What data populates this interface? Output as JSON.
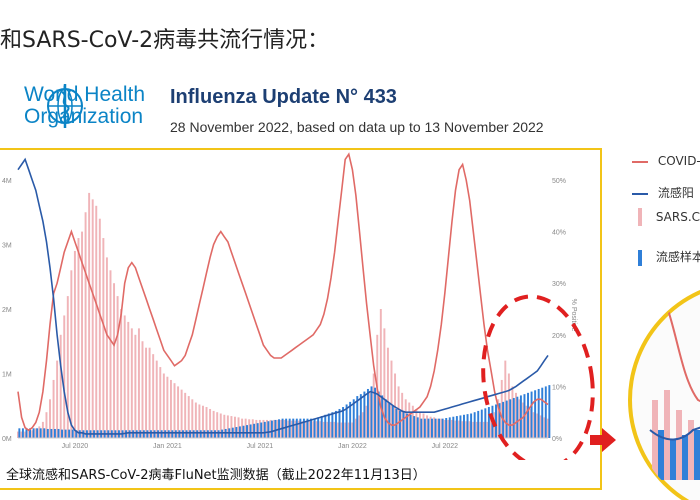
{
  "slide": {
    "title": "和SARS-CoV-2病毒共流行情况："
  },
  "who": {
    "line1": "World Health",
    "line2": "Organization"
  },
  "report": {
    "title": "Influenza Update N° 433",
    "subtitle": "28 November 2022, based on data up to 13 November 2022"
  },
  "caption": "全球流感和SARS-CoV-2病毒FluNet监测数据（截止2022年11月13日）",
  "legend": {
    "items": [
      {
        "label": "COVID-",
        "color": "#e06a66"
      },
      {
        "label": "流感阳",
        "color": "#2a5aa8"
      },
      {
        "label": "SARS.Co",
        "color": "#f0b4b8"
      },
      {
        "label": "流感样本",
        "color": "#2f7fd8"
      }
    ]
  },
  "colors": {
    "covid_line": "#e06a66",
    "flu_line": "#2a5aa8",
    "sars_bar": "#f0b4b8",
    "flu_bar": "#2f7fd8",
    "frame": "#f2c418",
    "highlight": "#e02020"
  },
  "chart_data": {
    "type": "bar",
    "x_tick_labels": [
      "Jul 2020",
      "Jan 2021",
      "Jul 2021",
      "Jan 2022",
      "Jul 2022"
    ],
    "y_left_ticks": [
      "0M",
      "1M",
      "2M",
      "3M",
      "4M"
    ],
    "y_right_ticks": [
      "0%",
      "10%",
      "20%",
      "30%",
      "40%",
      "50%"
    ],
    "y_right_label": "% Positive",
    "ylim_left": [
      0,
      4
    ],
    "ylim_right": [
      0,
      50
    ],
    "weeks": 150,
    "series": [
      {
        "kind": "bar",
        "values_M": [
          0.1,
          0.1,
          0.1,
          0.12,
          0.12,
          0.15,
          0.18,
          0.25,
          0.4,
          0.6,
          0.9,
          1.2,
          1.6,
          1.9,
          2.2,
          2.6,
          2.9,
          3.1,
          3.2,
          3.5,
          3.8,
          3.7,
          3.6,
          3.4,
          3.1,
          2.8,
          2.6,
          2.4,
          2.2,
          2.0,
          1.9,
          1.8,
          1.7,
          1.6,
          1.7,
          1.5,
          1.4,
          1.4,
          1.3,
          1.2,
          1.1,
          1.0,
          0.95,
          0.9,
          0.85,
          0.8,
          0.75,
          0.7,
          0.65,
          0.6,
          0.55,
          0.52,
          0.5,
          0.48,
          0.45,
          0.42,
          0.4,
          0.38,
          0.36,
          0.35,
          0.34,
          0.33,
          0.32,
          0.3,
          0.3,
          0.29,
          0.29,
          0.28,
          0.28,
          0.28,
          0.28,
          0.28,
          0.28,
          0.28,
          0.28,
          0.28,
          0.27,
          0.27,
          0.27,
          0.27,
          0.26,
          0.26,
          0.26,
          0.26,
          0.26,
          0.26,
          0.25,
          0.25,
          0.25,
          0.25,
          0.24,
          0.24,
          0.24,
          0.24,
          0.24,
          0.3,
          0.35,
          0.4,
          0.5,
          0.7,
          1.0,
          1.6,
          2.0,
          1.7,
          1.4,
          1.2,
          1.0,
          0.8,
          0.7,
          0.6,
          0.55,
          0.5,
          0.45,
          0.4,
          0.38,
          0.35,
          0.33,
          0.32,
          0.3,
          0.3,
          0.28,
          0.28,
          0.28,
          0.27,
          0.27,
          0.26,
          0.26,
          0.26,
          0.25,
          0.25,
          0.25,
          0.25,
          0.25,
          0.3,
          0.4,
          0.6,
          0.9,
          1.2,
          1.0,
          0.8,
          0.7,
          0.6,
          0.55,
          0.5,
          0.45,
          0.4,
          0.38,
          0.35,
          0.32,
          0.3
        ]
      },
      {
        "kind": "bar",
        "values_M": [
          0.15,
          0.15,
          0.15,
          0.15,
          0.15,
          0.15,
          0.15,
          0.15,
          0.14,
          0.14,
          0.14,
          0.14,
          0.13,
          0.13,
          0.13,
          0.13,
          0.12,
          0.12,
          0.12,
          0.12,
          0.12,
          0.12,
          0.12,
          0.12,
          0.12,
          0.12,
          0.12,
          0.12,
          0.12,
          0.12,
          0.12,
          0.12,
          0.12,
          0.12,
          0.12,
          0.12,
          0.12,
          0.12,
          0.12,
          0.12,
          0.12,
          0.12,
          0.12,
          0.12,
          0.12,
          0.12,
          0.12,
          0.12,
          0.12,
          0.12,
          0.12,
          0.12,
          0.12,
          0.12,
          0.12,
          0.12,
          0.12,
          0.13,
          0.14,
          0.15,
          0.16,
          0.17,
          0.18,
          0.19,
          0.2,
          0.21,
          0.22,
          0.23,
          0.24,
          0.25,
          0.26,
          0.27,
          0.28,
          0.29,
          0.3,
          0.3,
          0.3,
          0.3,
          0.3,
          0.3,
          0.3,
          0.3,
          0.3,
          0.3,
          0.32,
          0.34,
          0.36,
          0.38,
          0.4,
          0.42,
          0.45,
          0.48,
          0.52,
          0.56,
          0.6,
          0.65,
          0.68,
          0.72,
          0.76,
          0.8,
          0.78,
          0.72,
          0.66,
          0.6,
          0.55,
          0.5,
          0.45,
          0.42,
          0.4,
          0.38,
          0.36,
          0.34,
          0.32,
          0.3,
          0.3,
          0.3,
          0.3,
          0.3,
          0.3,
          0.3,
          0.31,
          0.32,
          0.33,
          0.34,
          0.35,
          0.36,
          0.37,
          0.38,
          0.4,
          0.42,
          0.44,
          0.46,
          0.48,
          0.5,
          0.52,
          0.54,
          0.56,
          0.58,
          0.6,
          0.62,
          0.64,
          0.66,
          0.68,
          0.7,
          0.72,
          0.74,
          0.76,
          0.78,
          0.8,
          0.82
        ]
      },
      {
        "kind": "line",
        "values_pct": [
          9.0,
          4.0,
          2.0,
          1.5,
          2.0,
          3.0,
          5.0,
          9.0,
          15.0,
          22.0,
          28.0,
          30.0,
          33.0,
          36.0,
          38.0,
          40.0,
          38.0,
          36.0,
          34.0,
          32.0,
          30.0,
          28.0,
          26.0,
          24.0,
          22.0,
          20.0,
          19.0,
          18.0,
          20.0,
          24.0,
          30.0,
          33.0,
          34.0,
          33.0,
          31.0,
          29.0,
          27.0,
          25.0,
          23.0,
          21.0,
          19.0,
          17.0,
          16.0,
          15.0,
          14.0,
          14.5,
          15.0,
          16.0,
          18.0,
          20.0,
          23.0,
          26.0,
          29.0,
          32.0,
          35.0,
          37.5,
          39.0,
          40.0,
          39.0,
          38.0,
          36.0,
          34.0,
          32.0,
          30.0,
          28.0,
          26.0,
          24.0,
          22.0,
          20.0,
          18.0,
          17.0,
          16.0,
          15.5,
          15.5,
          15.5,
          16.0,
          16.5,
          17.0,
          17.5,
          18.0,
          18.5,
          19.0,
          19.5,
          20.0,
          21.0,
          22.0,
          24.0,
          27.0,
          31.0,
          36.0,
          42.0,
          48.0,
          54.0,
          55.0,
          52.0,
          47.0,
          40.0,
          33.0,
          26.0,
          20.0,
          14.0,
          9.5,
          6.0,
          4.0,
          3.0,
          2.5,
          2.5,
          3.0,
          3.5,
          4.0,
          4.5,
          5.0,
          5.5,
          6.0,
          7.0,
          8.0,
          10.0,
          13.0,
          17.0,
          22.0,
          28.0,
          35.0,
          42.0,
          48.0,
          52.0,
          53.0,
          50.0,
          46.0,
          40.0,
          34.0,
          28.0,
          22.0,
          17.0,
          13.0,
          9.0,
          6.0,
          4.0,
          3.0,
          2.5,
          2.5,
          3.0,
          3.5,
          4.0,
          5.0,
          6.0,
          7.0,
          7.5,
          7.5,
          7.0,
          6.5
        ]
      },
      {
        "kind": "line",
        "values_pct": [
          52.0,
          53.0,
          54.0,
          52.0,
          50.0,
          48.0,
          45.0,
          42.0,
          38.0,
          33.0,
          27.0,
          20.0,
          14.0,
          9.0,
          5.0,
          2.5,
          1.5,
          1.0,
          1.0,
          0.8,
          0.8,
          0.8,
          0.8,
          0.8,
          0.8,
          0.8,
          0.8,
          0.8,
          0.8,
          0.8,
          0.9,
          1.0,
          1.0,
          1.0,
          1.0,
          1.0,
          1.0,
          1.0,
          1.0,
          1.0,
          1.0,
          1.0,
          1.0,
          1.0,
          1.0,
          1.0,
          1.0,
          1.0,
          1.0,
          1.0,
          1.0,
          1.0,
          1.0,
          1.0,
          1.0,
          1.0,
          1.0,
          1.0,
          1.0,
          1.0,
          1.0,
          1.0,
          1.0,
          1.0,
          1.0,
          1.0,
          1.0,
          1.0,
          1.0,
          1.0,
          1.1,
          1.2,
          1.4,
          1.6,
          1.8,
          2.0,
          2.2,
          2.4,
          2.6,
          2.8,
          3.0,
          3.2,
          3.4,
          3.6,
          3.8,
          4.0,
          4.2,
          4.4,
          4.6,
          4.8,
          5.0,
          5.2,
          5.5,
          6.0,
          6.5,
          7.0,
          7.5,
          8.0,
          8.5,
          9.0,
          8.8,
          8.5,
          8.0,
          7.5,
          7.0,
          6.5,
          6.0,
          5.6,
          5.2,
          5.0,
          5.0,
          5.0,
          5.0,
          5.0,
          5.0,
          5.0,
          5.0,
          5.0,
          5.2,
          5.4,
          5.6,
          5.8,
          6.0,
          6.2,
          6.4,
          6.6,
          6.8,
          7.0,
          7.2,
          7.4,
          7.6,
          7.8,
          8.0,
          8.2,
          8.4,
          8.6,
          8.8,
          9.0,
          9.2,
          9.6,
          10.0,
          10.5,
          11.0,
          11.5,
          12.0,
          12.5,
          13.0,
          14.0,
          15.0,
          16.0
        ]
      }
    ]
  }
}
